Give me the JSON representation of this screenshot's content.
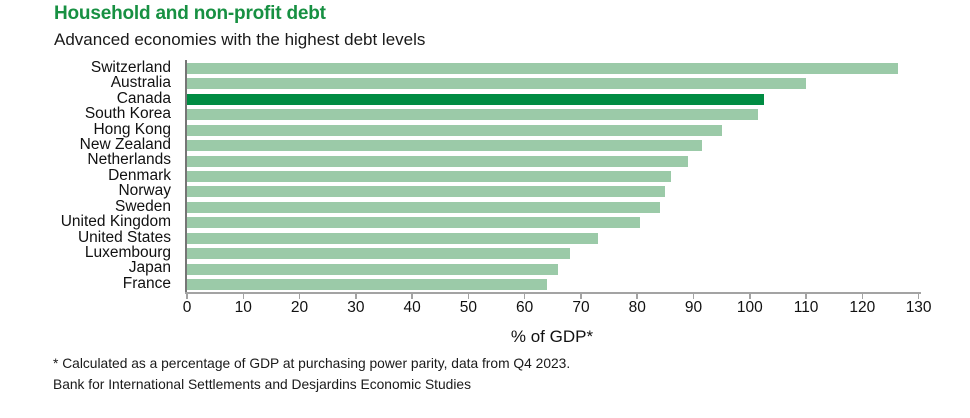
{
  "title": "Household and non-profit debt",
  "subtitle": "Advanced economies with the highest debt levels",
  "footnote": "* Calculated as a percentage of GDP at purchasing power parity, data from Q4 2023.",
  "source": "Bank for International Settlements and Desjardins Economic Studies",
  "colors": {
    "title_green": "#179042",
    "bar_light": "#9BCAA8",
    "bar_highlight": "#008C43",
    "axis_gray": "#a3a3a3",
    "axis_dark": "#767676",
    "text_dark": "#1a1a1a"
  },
  "chart_data": {
    "type": "bar",
    "orientation": "horizontal",
    "categories": [
      "Switzerland",
      "Australia",
      "Canada",
      "South Korea",
      "Hong Kong",
      "New Zealand",
      "Netherlands",
      "Denmark",
      "Norway",
      "Sweden",
      "United Kingdom",
      "United States",
      "Luxembourg",
      "Japan",
      "France"
    ],
    "values": [
      126.3,
      110,
      102.5,
      101.5,
      95,
      91.5,
      89,
      86,
      85,
      84,
      80.5,
      73,
      68,
      66,
      64
    ],
    "highlight_category": "Canada",
    "title": "Household and non-profit debt",
    "subtitle": "Advanced economies with the highest debt levels",
    "xlabel": "% of GDP*",
    "ylabel": "",
    "xlim": [
      0,
      130
    ],
    "xticks": [
      0,
      10,
      20,
      30,
      40,
      50,
      60,
      70,
      80,
      90,
      100,
      110,
      120,
      130
    ],
    "grid": false,
    "legend": false
  }
}
